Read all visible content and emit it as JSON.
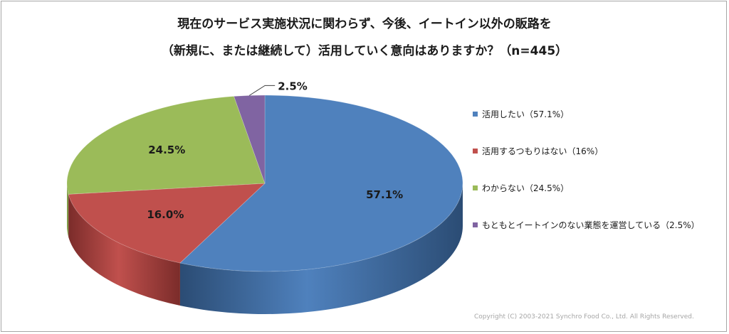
{
  "chart_data": {
    "type": "pie",
    "title_line1": "現在のサービス実施状況に関わらず、今後、イートイン以外の販路を",
    "title_line2": "（新規に、または継続して）活用していく意向はありますか？（n=445）",
    "slices": [
      {
        "legend": "活用したい（57.1%）",
        "value": 57.1,
        "label": "57.1%",
        "color": "#4f81bd",
        "dark": "#2b4c74"
      },
      {
        "legend": "活用するつもりはない（16%）",
        "value": 16.0,
        "label": "16.0%",
        "color": "#c0504d",
        "dark": "#7b2c2a"
      },
      {
        "legend": "わからない（24.5%）",
        "value": 24.5,
        "label": "24.5%",
        "color": "#9bbb59",
        "dark": "#627a34"
      },
      {
        "legend": "もともとイートインのない業態を運営している（2.5%）",
        "value": 2.5,
        "label": "2.5%",
        "color": "#8064a2",
        "dark": "#4f3c67"
      }
    ],
    "legend_position": "right"
  },
  "copyright": "Copyright (C) 2003-2021   Synchro Food Co., Ltd.  All Rights Reserved."
}
